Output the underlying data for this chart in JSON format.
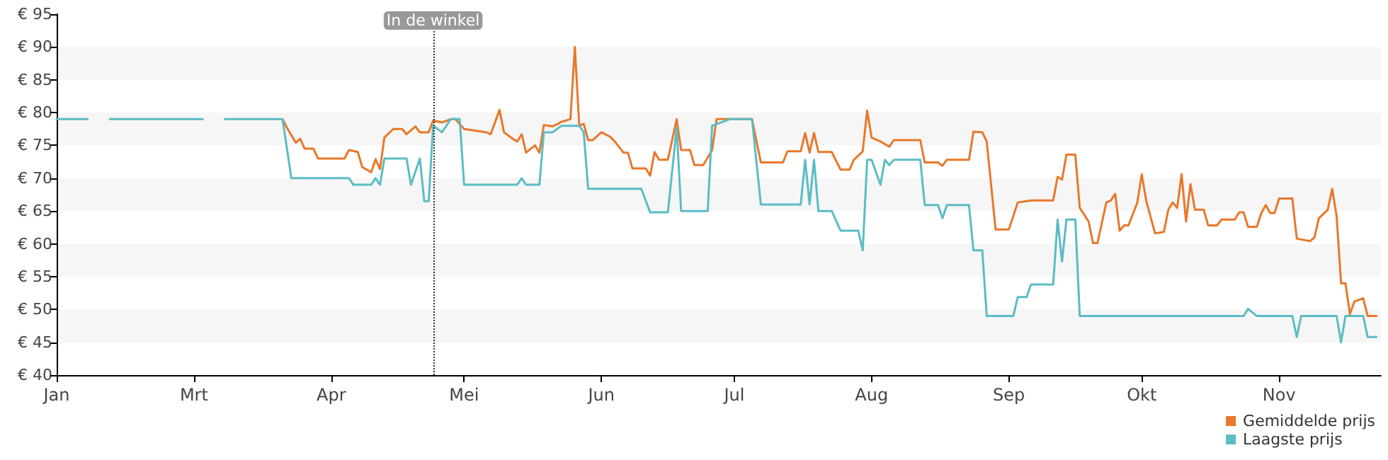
{
  "chart_data": {
    "type": "line",
    "ylim": [
      40,
      95
    ],
    "yticks": [
      {
        "value": 40,
        "label": "€ 40"
      },
      {
        "value": 45,
        "label": "€ 45"
      },
      {
        "value": 50,
        "label": "€ 50"
      },
      {
        "value": 55,
        "label": "€ 55"
      },
      {
        "value": 60,
        "label": "€ 60"
      },
      {
        "value": 65,
        "label": "€ 65"
      },
      {
        "value": 70,
        "label": "€ 70"
      },
      {
        "value": 75,
        "label": "€ 75"
      },
      {
        "value": 80,
        "label": "€ 80"
      },
      {
        "value": 85,
        "label": "€ 85"
      },
      {
        "value": 90,
        "label": "€ 90"
      },
      {
        "value": 95,
        "label": "€ 95"
      }
    ],
    "xlim": [
      "--01-29",
      "--11-24"
    ],
    "xticks": [
      {
        "value": "--01-29",
        "label": "Jan"
      },
      {
        "value": "--03-01",
        "label": "Mrt"
      },
      {
        "value": "--04-01",
        "label": "Apr"
      },
      {
        "value": "--05-01",
        "label": "Mei"
      },
      {
        "value": "--06-01",
        "label": "Jun"
      },
      {
        "value": "--07-01",
        "label": "Jul"
      },
      {
        "value": "--08-01",
        "label": "Aug"
      },
      {
        "value": "--09-01",
        "label": "Sep"
      },
      {
        "value": "--10-01",
        "label": "Okt"
      },
      {
        "value": "--11-01",
        "label": "Nov"
      }
    ],
    "bands": [
      {
        "axis": "y",
        "from": 45,
        "to": 50,
        "color": "#f6f6f6"
      },
      {
        "axis": "y",
        "from": 55,
        "to": 60,
        "color": "#f6f6f6"
      },
      {
        "axis": "y",
        "from": 65,
        "to": 70,
        "color": "#f6f6f6"
      },
      {
        "axis": "y",
        "from": 75,
        "to": 80,
        "color": "#f6f6f6"
      },
      {
        "axis": "y",
        "from": 85,
        "to": 90,
        "color": "#f6f6f6"
      }
    ],
    "legend": "bottom right",
    "marker": "none",
    "line_style": "solid",
    "ref_lines": [
      {
        "axis": "x",
        "value": "--04-24",
        "label": "In de winkel",
        "line_style": "dotted",
        "color": "#333333"
      }
    ],
    "series": [
      {
        "name": "Gemiddelde prijs",
        "color": "#e8782a",
        "x": [
          "--03-21",
          "--03-22",
          "--03-24",
          "--03-25",
          "--03-26",
          "--03-28",
          "--03-29",
          "--04-04",
          "--04-05",
          "--04-07",
          "--04-08",
          "--04-10",
          "--04-11",
          "--04-12",
          "--04-13",
          "--04-15",
          "--04-17",
          "--04-18",
          "--04-20",
          "--04-21",
          "--04-23",
          "--04-24",
          "--04-26",
          "--04-28",
          "--04-29",
          "--05-01",
          "--05-06",
          "--05-07",
          "--05-09",
          "--05-10",
          "--05-12",
          "--05-13",
          "--05-14",
          "--05-15",
          "--05-17",
          "--05-18",
          "--05-19",
          "--05-21",
          "--05-23",
          "--05-25",
          "--05-26",
          "--05-27",
          "--05-28",
          "--05-29",
          "--05-30",
          "--06-01",
          "--06-03",
          "--06-04",
          "--06-06",
          "--06-07",
          "--06-08",
          "--06-11",
          "--06-12",
          "--06-13",
          "--06-14",
          "--06-16",
          "--06-18",
          "--06-19",
          "--06-21",
          "--06-22",
          "--06-24",
          "--06-26",
          "--06-27",
          "--07-05",
          "--07-07",
          "--07-12",
          "--07-13",
          "--07-16",
          "--07-17",
          "--07-18",
          "--07-19",
          "--07-20",
          "--07-23",
          "--07-25",
          "--07-27",
          "--07-28",
          "--07-30",
          "--07-31",
          "--08-01",
          "--08-03",
          "--08-05",
          "--08-06",
          "--08-12",
          "--08-13",
          "--08-16",
          "--08-17",
          "--08-18",
          "--08-23",
          "--08-24",
          "--08-26",
          "--08-27",
          "--08-29",
          "--09-01",
          "--09-03",
          "--09-06",
          "--09-11",
          "--09-12",
          "--09-13",
          "--09-14",
          "--09-16",
          "--09-17",
          "--09-19",
          "--09-20",
          "--09-21",
          "--09-23",
          "--09-24",
          "--09-25",
          "--09-26",
          "--09-27",
          "--09-28",
          "--09-30",
          "--10-01",
          "--10-02",
          "--10-04",
          "--10-06",
          "--10-07",
          "--10-08",
          "--10-09",
          "--10-10",
          "--10-11",
          "--10-12",
          "--10-13",
          "--10-15",
          "--10-16",
          "--10-18",
          "--10-19",
          "--10-22",
          "--10-23",
          "--10-24",
          "--10-25",
          "--10-27",
          "--10-28",
          "--10-29",
          "--10-30",
          "--10-31",
          "--11-01",
          "--11-04",
          "--11-05",
          "--11-08",
          "--11-09",
          "--11-10",
          "--11-12",
          "--11-13",
          "--11-14",
          "--11-15",
          "--11-16",
          "--11-17",
          "--11-18",
          "--11-20",
          "--11-21",
          "--11-23"
        ],
        "values": [
          79,
          77.7,
          75.4,
          76,
          74.5,
          74.5,
          73,
          73,
          74.3,
          74,
          71.7,
          70.9,
          72.9,
          71.4,
          76.2,
          77.5,
          77.5,
          76.7,
          77.9,
          77,
          77,
          78.8,
          78.5,
          79,
          79,
          77.5,
          77,
          76.7,
          80.4,
          77,
          76,
          75.6,
          76.7,
          73.9,
          75,
          73.9,
          78.1,
          77.9,
          78.6,
          79,
          90,
          78,
          78.3,
          75.8,
          75.8,
          77,
          76.3,
          75.6,
          73.9,
          73.9,
          71.5,
          71.5,
          70.4,
          74,
          72.8,
          72.8,
          79,
          74.3,
          74.3,
          72,
          72,
          74.3,
          79,
          79,
          72.4,
          72.4,
          74.1,
          74.1,
          76.9,
          73.9,
          76.9,
          74,
          74,
          71.3,
          71.3,
          72.8,
          74.1,
          80.3,
          76.2,
          75.6,
          74.8,
          75.8,
          75.8,
          72.4,
          72.4,
          71.9,
          72.8,
          72.8,
          77.1,
          77,
          75.6,
          62.2,
          62.2,
          66.3,
          66.6,
          66.6,
          70.2,
          69.8,
          73.6,
          73.6,
          65.5,
          63.4,
          60.1,
          60.1,
          66.3,
          66.6,
          67.6,
          62,
          62.8,
          62.8,
          66.3,
          70.6,
          66.6,
          61.6,
          61.8,
          65.2,
          66.3,
          65.5,
          70.6,
          63.4,
          69.1,
          65.2,
          65.2,
          62.8,
          62.8,
          63.7,
          63.7,
          64.8,
          64.8,
          62.6,
          62.6,
          64.7,
          65.9,
          64.7,
          64.7,
          66.9,
          66.9,
          60.8,
          60.4,
          61,
          63.9,
          65.2,
          68.4,
          64.2,
          54,
          54,
          49.3,
          51.2,
          51.7,
          49,
          49
        ]
      },
      {
        "name": "Laagste prijs",
        "color": "#5bbcc4",
        "x": [
          "--01-29",
          "--02-05",
          "--02-07",
          "--02-10",
          "--03-03",
          "--03-05",
          "--03-08",
          "--03-21",
          "--03-23",
          "--04-05",
          "--04-06",
          "--04-10",
          "--04-11",
          "--04-12",
          "--04-13",
          "--04-18",
          "--04-19",
          "--04-21",
          "--04-22",
          "--04-23",
          "--04-24",
          "--04-26",
          "--04-28",
          "--04-30",
          "--05-01",
          "--05-13",
          "--05-14",
          "--05-15",
          "--05-18",
          "--05-19",
          "--05-21",
          "--05-23",
          "--05-27",
          "--05-28",
          "--05-29",
          "--06-10",
          "--06-12",
          "--06-16",
          "--06-18",
          "--06-19",
          "--06-25",
          "--06-26",
          "--06-30",
          "--07-05",
          "--07-07",
          "--07-16",
          "--07-17",
          "--07-18",
          "--07-19",
          "--07-20",
          "--07-23",
          "--07-25",
          "--07-29",
          "--07-30",
          "--07-31",
          "--08-01",
          "--08-03",
          "--08-04",
          "--08-05",
          "--08-06",
          "--08-12",
          "--08-13",
          "--08-16",
          "--08-17",
          "--08-18",
          "--08-23",
          "--08-24",
          "--08-26",
          "--08-27",
          "--09-02",
          "--09-03",
          "--09-05",
          "--09-06",
          "--09-11",
          "--09-12",
          "--09-13",
          "--09-14",
          "--09-16",
          "--09-17",
          "--10-24",
          "--10-25",
          "--10-27",
          "--11-04",
          "--11-05",
          "--11-06",
          "--11-14",
          "--11-15",
          "--11-16",
          "--11-20",
          "--11-21",
          "--11-23"
        ],
        "values": [
          79,
          79,
          null,
          79,
          79,
          null,
          79,
          79,
          70,
          70,
          69,
          69,
          70,
          69,
          73,
          73,
          69,
          73,
          66.5,
          66.5,
          78,
          77,
          79,
          79,
          69,
          69,
          70,
          69,
          69,
          77,
          77,
          78,
          78,
          77,
          68.4,
          68.4,
          64.8,
          64.8,
          77.7,
          65,
          65,
          78,
          79,
          79,
          66,
          66,
          72.8,
          66,
          72.8,
          65,
          65,
          62,
          62,
          59,
          72.8,
          72.8,
          69,
          72.8,
          72,
          72.8,
          72.8,
          65.9,
          65.9,
          63.9,
          65.9,
          65.9,
          59,
          59,
          49,
          49,
          51.9,
          51.9,
          53.8,
          53.8,
          63.7,
          57.3,
          63.7,
          63.7,
          49,
          49,
          50.1,
          49,
          49,
          45.8,
          49,
          49,
          45,
          49,
          49,
          45.8,
          45.8
        ]
      }
    ]
  }
}
